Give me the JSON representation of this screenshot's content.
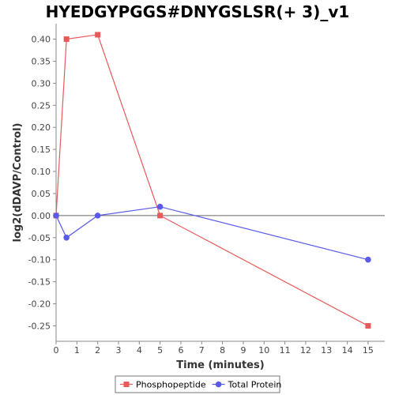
{
  "chart_data": {
    "type": "line",
    "title": "HYEDGYPGGS#DNYGSLSR(+ 3)_v1",
    "xlabel": "Time (minutes)",
    "ylabel": "log2(dDAVP/Control)",
    "x_ticks": [
      0,
      1,
      2,
      3,
      4,
      5,
      6,
      7,
      8,
      9,
      10,
      11,
      12,
      13,
      14,
      15
    ],
    "y_ticks": [
      0.4,
      0.35,
      0.3,
      0.25,
      0.2,
      0.15,
      0.1,
      0.05,
      0.0,
      -0.05,
      -0.1,
      -0.15,
      -0.2,
      -0.25
    ],
    "y_tick_labels": [
      "0.40",
      "0.35",
      "0.30",
      "0.25",
      "0.20",
      "0.15",
      "0.10",
      "0.05",
      "0.00",
      "-0.05",
      "-0.10",
      "-0.15",
      "-0.20",
      "-0.25"
    ],
    "xlim": [
      0,
      15.8
    ],
    "ylim": [
      -0.285,
      0.435
    ],
    "grid": false,
    "legend_position": "bottom",
    "series": [
      {
        "name": "Phosphopeptide",
        "color": "#e85a5a",
        "marker": "square",
        "x": [
          0,
          0.5,
          2,
          5,
          15
        ],
        "y": [
          0.0,
          0.4,
          0.41,
          0.0,
          -0.25
        ]
      },
      {
        "name": "Total Protein",
        "color": "#5a5ae8",
        "marker": "circle",
        "x": [
          0,
          0.5,
          2,
          5,
          15
        ],
        "y": [
          0.0,
          -0.05,
          0.0,
          0.02,
          -0.1
        ]
      }
    ]
  }
}
